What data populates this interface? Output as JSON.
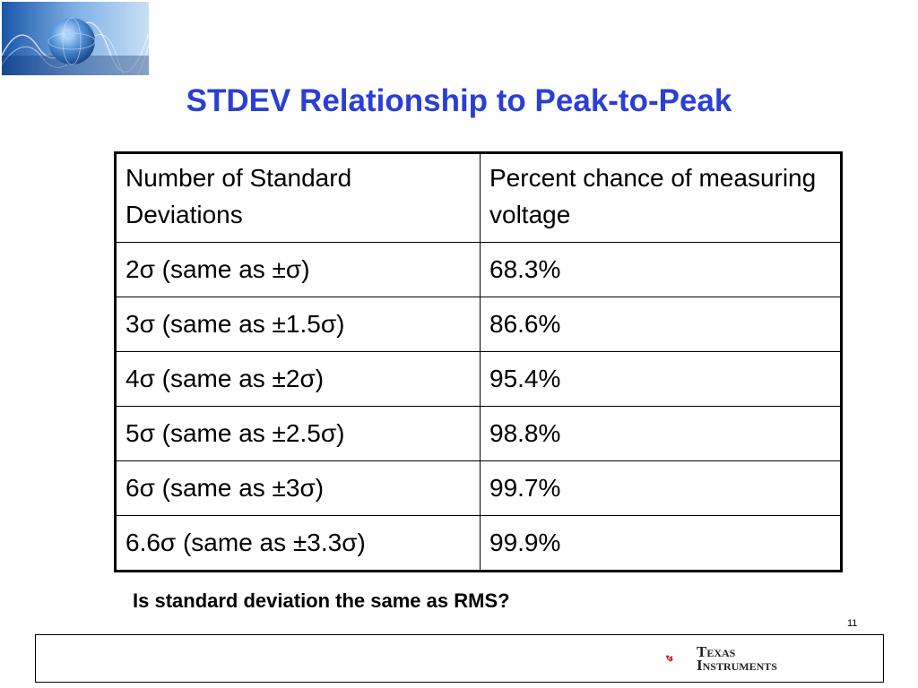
{
  "slide": {
    "title": "STDEV Relationship to Peak-to-Peak",
    "question": "Is standard deviation the same as RMS?",
    "page_number": "11"
  },
  "table": {
    "headers": [
      "Number of Standard Deviations",
      "Percent chance of measuring voltage"
    ],
    "rows": [
      [
        "2σ  (same as ±σ)",
        "68.3%"
      ],
      [
        "3σ  (same as ±1.5σ)",
        "86.6%"
      ],
      [
        "4σ  (same as ±2σ)",
        "95.4%"
      ],
      [
        "5σ  (same as ±2.5σ)",
        "98.8%"
      ],
      [
        "6σ  (same as ±3σ)",
        "99.7%"
      ],
      [
        "6.6σ  (same as ±3.3σ)",
        "99.9%"
      ]
    ]
  },
  "footer": {
    "brand_line1": "Texas",
    "brand_line2": "Instruments"
  },
  "colors": {
    "title": "#2a3fd6",
    "ti_red": "#cc1f1f"
  },
  "icons": {
    "header_logo": "globe-icon",
    "brand_logo": "ti-state-icon"
  }
}
